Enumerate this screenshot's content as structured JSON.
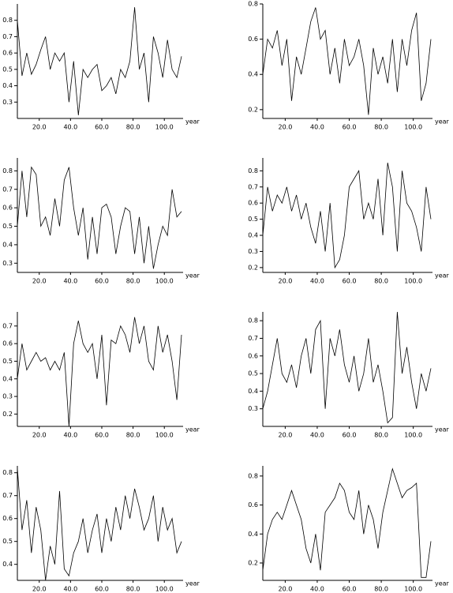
{
  "chart_data": [
    {
      "type": "line",
      "x_label": "year",
      "color": "#000000",
      "x": [
        6,
        9,
        12,
        15,
        18,
        21,
        24,
        27,
        30,
        33,
        36,
        39,
        42,
        45,
        48,
        51,
        54,
        57,
        60,
        63,
        66,
        69,
        72,
        75,
        78,
        81,
        84,
        87,
        90,
        93,
        96,
        99,
        102,
        105,
        108,
        111
      ],
      "values": [
        0.8,
        0.46,
        0.6,
        0.47,
        0.53,
        0.62,
        0.7,
        0.5,
        0.6,
        0.55,
        0.6,
        0.3,
        0.55,
        0.22,
        0.5,
        0.45,
        0.5,
        0.53,
        0.37,
        0.4,
        0.45,
        0.35,
        0.5,
        0.45,
        0.55,
        0.88,
        0.5,
        0.6,
        0.3,
        0.7,
        0.6,
        0.45,
        0.68,
        0.5,
        0.45,
        0.58
      ],
      "xlim": [
        6,
        112
      ],
      "ylim": [
        0.2,
        0.9
      ],
      "xticks": [
        {
          "value": 20,
          "label": "20.0"
        },
        {
          "value": 40,
          "label": "40.0"
        },
        {
          "value": 60,
          "label": "60.0"
        },
        {
          "value": 80,
          "label": "80.0"
        },
        {
          "value": 100,
          "label": "100.0"
        }
      ],
      "yticks": [
        0.3,
        0.4,
        0.5,
        0.6,
        0.7,
        0.8
      ]
    },
    {
      "type": "line",
      "x_label": "year",
      "color": "#000000",
      "x": [
        6,
        9,
        12,
        15,
        18,
        21,
        24,
        27,
        30,
        33,
        36,
        39,
        42,
        45,
        48,
        51,
        54,
        57,
        60,
        63,
        66,
        69,
        72,
        75,
        78,
        81,
        84,
        87,
        90,
        93,
        96,
        99,
        102,
        105,
        108,
        111
      ],
      "values": [
        0.4,
        0.6,
        0.55,
        0.65,
        0.45,
        0.6,
        0.25,
        0.5,
        0.4,
        0.55,
        0.7,
        0.78,
        0.6,
        0.65,
        0.4,
        0.55,
        0.35,
        0.6,
        0.45,
        0.5,
        0.6,
        0.45,
        0.17,
        0.55,
        0.4,
        0.5,
        0.35,
        0.6,
        0.3,
        0.6,
        0.45,
        0.65,
        0.75,
        0.25,
        0.35,
        0.6
      ],
      "xlim": [
        6,
        112
      ],
      "ylim": [
        0.15,
        0.8
      ],
      "xticks": [
        {
          "value": 20,
          "label": "20.0"
        },
        {
          "value": 40,
          "label": "40.0"
        },
        {
          "value": 60,
          "label": "60.0"
        },
        {
          "value": 80,
          "label": "80.0"
        },
        {
          "value": 100,
          "label": "100.0"
        }
      ],
      "yticks": [
        0.2,
        0.4,
        0.6,
        0.8
      ]
    },
    {
      "type": "line",
      "x_label": "year",
      "color": "#000000",
      "x": [
        6,
        9,
        12,
        15,
        18,
        21,
        24,
        27,
        30,
        33,
        36,
        39,
        42,
        45,
        48,
        51,
        54,
        57,
        60,
        63,
        66,
        69,
        72,
        75,
        78,
        81,
        84,
        87,
        90,
        93,
        96,
        99,
        102,
        105,
        108,
        111
      ],
      "values": [
        0.5,
        0.8,
        0.55,
        0.82,
        0.78,
        0.5,
        0.55,
        0.45,
        0.65,
        0.5,
        0.75,
        0.82,
        0.6,
        0.45,
        0.6,
        0.32,
        0.55,
        0.35,
        0.6,
        0.62,
        0.55,
        0.35,
        0.5,
        0.6,
        0.58,
        0.35,
        0.55,
        0.3,
        0.5,
        0.27,
        0.4,
        0.5,
        0.45,
        0.7,
        0.55,
        0.58
      ],
      "xlim": [
        6,
        112
      ],
      "ylim": [
        0.25,
        0.87
      ],
      "xticks": [
        {
          "value": 20,
          "label": "20.0"
        },
        {
          "value": 40,
          "label": "40.0"
        },
        {
          "value": 60,
          "label": "60.0"
        },
        {
          "value": 80,
          "label": "80.0"
        },
        {
          "value": 100,
          "label": "100.0"
        }
      ],
      "yticks": [
        0.3,
        0.4,
        0.5,
        0.6,
        0.7,
        0.8
      ]
    },
    {
      "type": "line",
      "x_label": "year",
      "color": "#000000",
      "x": [
        6,
        9,
        12,
        15,
        18,
        21,
        24,
        27,
        30,
        33,
        36,
        39,
        42,
        45,
        48,
        51,
        54,
        57,
        60,
        63,
        66,
        69,
        72,
        75,
        78,
        81,
        84,
        87,
        90,
        93,
        96,
        99,
        102,
        105,
        108,
        111
      ],
      "values": [
        0.4,
        0.7,
        0.55,
        0.65,
        0.6,
        0.7,
        0.55,
        0.65,
        0.5,
        0.6,
        0.45,
        0.35,
        0.55,
        0.3,
        0.6,
        0.2,
        0.25,
        0.4,
        0.7,
        0.75,
        0.8,
        0.5,
        0.6,
        0.5,
        0.75,
        0.4,
        0.85,
        0.7,
        0.3,
        0.8,
        0.6,
        0.55,
        0.45,
        0.3,
        0.7,
        0.5
      ],
      "xlim": [
        6,
        112
      ],
      "ylim": [
        0.17,
        0.88
      ],
      "xticks": [
        {
          "value": 20,
          "label": "20.0"
        },
        {
          "value": 40,
          "label": "40.0"
        },
        {
          "value": 60,
          "label": "60.0"
        },
        {
          "value": 80,
          "label": "80.0"
        },
        {
          "value": 100,
          "label": "100.0"
        }
      ],
      "yticks": [
        0.2,
        0.3,
        0.4,
        0.5,
        0.6,
        0.7,
        0.8
      ]
    },
    {
      "type": "line",
      "x_label": "year",
      "color": "#000000",
      "x": [
        6,
        9,
        12,
        15,
        18,
        21,
        24,
        27,
        30,
        33,
        36,
        39,
        42,
        45,
        48,
        51,
        54,
        57,
        60,
        63,
        66,
        69,
        72,
        75,
        78,
        81,
        84,
        87,
        90,
        93,
        96,
        99,
        102,
        105,
        108,
        111
      ],
      "values": [
        0.4,
        0.6,
        0.45,
        0.5,
        0.55,
        0.5,
        0.52,
        0.45,
        0.5,
        0.45,
        0.55,
        0.13,
        0.6,
        0.73,
        0.6,
        0.55,
        0.6,
        0.4,
        0.65,
        0.25,
        0.62,
        0.6,
        0.7,
        0.65,
        0.55,
        0.75,
        0.6,
        0.7,
        0.5,
        0.45,
        0.7,
        0.55,
        0.65,
        0.5,
        0.28,
        0.65
      ],
      "xlim": [
        6,
        112
      ],
      "ylim": [
        0.13,
        0.78
      ],
      "xticks": [
        {
          "value": 20,
          "label": "20.0"
        },
        {
          "value": 40,
          "label": "40.0"
        },
        {
          "value": 60,
          "label": "60.0"
        },
        {
          "value": 80,
          "label": "80.0"
        },
        {
          "value": 100,
          "label": "100.0"
        }
      ],
      "yticks": [
        0.2,
        0.3,
        0.4,
        0.5,
        0.6,
        0.7
      ]
    },
    {
      "type": "line",
      "x_label": "year",
      "color": "#000000",
      "x": [
        6,
        9,
        12,
        15,
        18,
        21,
        24,
        27,
        30,
        33,
        36,
        39,
        42,
        45,
        48,
        51,
        54,
        57,
        60,
        63,
        66,
        69,
        72,
        75,
        78,
        81,
        84,
        87,
        90,
        93,
        96,
        99,
        102,
        105,
        108,
        111
      ],
      "values": [
        0.3,
        0.4,
        0.55,
        0.7,
        0.5,
        0.45,
        0.55,
        0.42,
        0.6,
        0.7,
        0.5,
        0.75,
        0.8,
        0.3,
        0.7,
        0.6,
        0.75,
        0.55,
        0.45,
        0.6,
        0.4,
        0.5,
        0.7,
        0.45,
        0.55,
        0.4,
        0.22,
        0.25,
        0.85,
        0.5,
        0.65,
        0.45,
        0.3,
        0.5,
        0.4,
        0.53
      ],
      "xlim": [
        6,
        112
      ],
      "ylim": [
        0.2,
        0.85
      ],
      "xticks": [
        {
          "value": 20,
          "label": "20.0"
        },
        {
          "value": 40,
          "label": "40.0"
        },
        {
          "value": 60,
          "label": "60.0"
        },
        {
          "value": 80,
          "label": "80.0"
        },
        {
          "value": 100,
          "label": "100.0"
        }
      ],
      "yticks": [
        0.3,
        0.4,
        0.5,
        0.6,
        0.7,
        0.8
      ]
    },
    {
      "type": "line",
      "x_label": "year",
      "color": "#000000",
      "x": [
        6,
        9,
        12,
        15,
        18,
        21,
        24,
        27,
        30,
        33,
        36,
        39,
        42,
        45,
        48,
        51,
        54,
        57,
        60,
        63,
        66,
        69,
        72,
        75,
        78,
        81,
        84,
        87,
        90,
        93,
        96,
        99,
        102,
        105,
        108,
        111
      ],
      "values": [
        0.82,
        0.55,
        0.68,
        0.45,
        0.65,
        0.55,
        0.33,
        0.48,
        0.4,
        0.72,
        0.38,
        0.35,
        0.45,
        0.5,
        0.6,
        0.45,
        0.55,
        0.62,
        0.45,
        0.6,
        0.5,
        0.65,
        0.55,
        0.7,
        0.6,
        0.73,
        0.65,
        0.55,
        0.6,
        0.7,
        0.5,
        0.65,
        0.55,
        0.6,
        0.45,
        0.5
      ],
      "xlim": [
        6,
        112
      ],
      "ylim": [
        0.33,
        0.83
      ],
      "xticks": [
        {
          "value": 20,
          "label": "20.0"
        },
        {
          "value": 40,
          "label": "40.0"
        },
        {
          "value": 60,
          "label": "60.0"
        },
        {
          "value": 80,
          "label": "80.0"
        },
        {
          "value": 100,
          "label": "100.0"
        }
      ],
      "yticks": [
        0.4,
        0.5,
        0.6,
        0.7,
        0.8
      ]
    },
    {
      "type": "line",
      "x_label": "year",
      "color": "#000000",
      "x": [
        6,
        9,
        12,
        15,
        18,
        21,
        24,
        27,
        30,
        33,
        36,
        39,
        42,
        45,
        48,
        51,
        54,
        57,
        60,
        63,
        66,
        69,
        72,
        75,
        78,
        81,
        84,
        87,
        90,
        93,
        96,
        99,
        102,
        105,
        108,
        111
      ],
      "values": [
        0.15,
        0.4,
        0.5,
        0.55,
        0.5,
        0.6,
        0.7,
        0.6,
        0.5,
        0.3,
        0.2,
        0.4,
        0.15,
        0.55,
        0.6,
        0.65,
        0.75,
        0.7,
        0.55,
        0.5,
        0.7,
        0.4,
        0.6,
        0.5,
        0.3,
        0.55,
        0.7,
        0.85,
        0.75,
        0.65,
        0.7,
        0.72,
        0.75,
        0.1,
        0.1,
        0.35
      ],
      "xlim": [
        6,
        112
      ],
      "ylim": [
        0.08,
        0.87
      ],
      "xticks": [
        {
          "value": 20,
          "label": "20.0"
        },
        {
          "value": 40,
          "label": "40.0"
        },
        {
          "value": 60,
          "label": "60.0"
        },
        {
          "value": 80,
          "label": "80.0"
        },
        {
          "value": 100,
          "label": "100.0"
        }
      ],
      "yticks": [
        0.2,
        0.4,
        0.6,
        0.8
      ]
    }
  ]
}
